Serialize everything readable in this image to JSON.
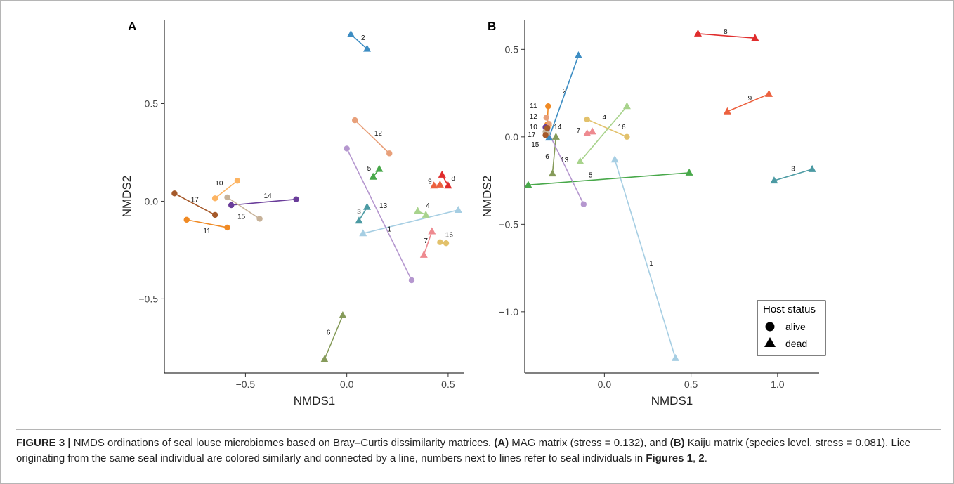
{
  "caption": {
    "lead": "FIGURE 3 |",
    "t1": " NMDS ordinations of seal louse microbiomes based on Bray–Curtis dissimilarity matrices. ",
    "a": "(A)",
    "t2": " MAG matrix (stress = 0.132), and ",
    "b": "(B)",
    "t3": " Kaiju matrix (species level, stress = 0.081). Lice originating from the same seal individual are colored similarly and connected by a line, numbers next to lines refer to seal individuals in ",
    "f1": "Figures 1",
    "sep": ", ",
    "f2": "2",
    "end": "."
  },
  "chart_data": [
    {
      "type": "scatter",
      "panel": "A",
      "title": "",
      "xlabel": "NMDS1",
      "ylabel": "NMDS2",
      "xlim": [
        -0.9,
        0.58
      ],
      "ylim": [
        -0.88,
        0.93
      ],
      "xticks": [
        -0.5,
        0.0,
        0.5
      ],
      "xticklabels": [
        "−0.5",
        "0.0",
        "0.5"
      ],
      "yticks": [
        -0.5,
        0.0,
        0.5
      ],
      "yticklabels": [
        "−0.5",
        "0.0",
        "0.5"
      ],
      "pairs": [
        {
          "id": "1",
          "color": "#a6cee3",
          "alive": null,
          "dead": [
            [
              0.08,
              -0.165
            ],
            [
              0.55,
              -0.045
            ]
          ],
          "label": [
            0.21,
            -0.14
          ]
        },
        {
          "id": "2",
          "color": "#3d8dc3",
          "alive": null,
          "dead": [
            [
              0.02,
              0.855
            ],
            [
              0.1,
              0.78
            ]
          ],
          "label": [
            0.08,
            0.84
          ]
        },
        {
          "id": "3",
          "color": "#4b9aa3",
          "alive": null,
          "dead": [
            [
              0.06,
              -0.1
            ],
            [
              0.1,
              -0.03
            ]
          ],
          "label": [
            0.06,
            -0.05
          ]
        },
        {
          "id": "4",
          "color": "#a8d38c",
          "alive": null,
          "dead": [
            [
              0.35,
              -0.05
            ],
            [
              0.39,
              -0.07
            ]
          ],
          "label": [
            0.4,
            -0.02
          ]
        },
        {
          "id": "5",
          "color": "#48a84a",
          "alive": null,
          "dead": [
            [
              0.13,
              0.125
            ],
            [
              0.16,
              0.165
            ]
          ],
          "label": [
            0.11,
            0.17
          ]
        },
        {
          "id": "6",
          "color": "#869b5a",
          "alive": null,
          "dead": [
            [
              -0.11,
              -0.81
            ],
            [
              -0.02,
              -0.585
            ]
          ],
          "label": [
            -0.09,
            -0.67
          ]
        },
        {
          "id": "7",
          "color": "#ee8a90",
          "alive": null,
          "dead": [
            [
              0.38,
              -0.275
            ],
            [
              0.42,
              -0.155
            ]
          ],
          "label": [
            0.39,
            -0.2
          ]
        },
        {
          "id": "8",
          "color": "#e02c2c",
          "alive": null,
          "dead": [
            [
              0.47,
              0.135
            ],
            [
              0.5,
              0.08
            ]
          ],
          "label": [
            0.525,
            0.12
          ]
        },
        {
          "id": "9",
          "color": "#ec613f",
          "alive": null,
          "dead": [
            [
              0.43,
              0.08
            ],
            [
              0.46,
              0.085
            ]
          ],
          "label": [
            0.41,
            0.105
          ]
        },
        {
          "id": "10",
          "color": "#fdb462",
          "alive": [
            [
              -0.65,
              0.015
            ],
            [
              -0.54,
              0.105
            ]
          ],
          "dead": null,
          "label": [
            -0.63,
            0.095
          ]
        },
        {
          "id": "11",
          "color": "#f08a24",
          "alive": [
            [
              -0.79,
              -0.095
            ],
            [
              -0.59,
              -0.135
            ]
          ],
          "dead": null,
          "label": [
            -0.69,
            -0.15
          ]
        },
        {
          "id": "12",
          "color": "#e8a07a",
          "alive": [
            [
              0.04,
              0.415
            ],
            [
              0.21,
              0.245
            ]
          ],
          "dead": null,
          "label": [
            0.155,
            0.35
          ]
        },
        {
          "id": "13",
          "color": "#b597cf",
          "alive": [
            [
              0.0,
              0.27
            ],
            [
              0.32,
              -0.405
            ]
          ],
          "dead": null,
          "label": [
            0.18,
            -0.02
          ]
        },
        {
          "id": "14",
          "color": "#6a3d9a",
          "alive": [
            [
              -0.57,
              -0.02
            ],
            [
              -0.25,
              0.01
            ]
          ],
          "dead": null,
          "label": [
            -0.39,
            0.03
          ]
        },
        {
          "id": "15",
          "color": "#c7b299",
          "alive": [
            [
              -0.59,
              0.02
            ],
            [
              -0.43,
              -0.09
            ]
          ],
          "dead": null,
          "label": [
            -0.52,
            -0.075
          ]
        },
        {
          "id": "16",
          "color": "#e2c16b",
          "alive": [
            [
              0.46,
              -0.21
            ],
            [
              0.49,
              -0.215
            ]
          ],
          "dead": null,
          "label": [
            0.505,
            -0.17
          ]
        },
        {
          "id": "17",
          "color": "#a5592a",
          "alive": [
            [
              -0.85,
              0.04
            ],
            [
              -0.65,
              -0.07
            ]
          ],
          "dead": null,
          "label": [
            -0.75,
            0.01
          ]
        }
      ]
    },
    {
      "type": "scatter",
      "panel": "B",
      "title": "",
      "xlabel": "NMDS1",
      "ylabel": "NMDS2",
      "xlim": [
        -0.46,
        1.24
      ],
      "ylim": [
        -1.35,
        0.67
      ],
      "xticks": [
        0.0,
        0.5,
        1.0
      ],
      "xticklabels": [
        "0.0",
        "0.5",
        "1.0"
      ],
      "yticks": [
        -1.0,
        -0.5,
        0.0,
        0.5
      ],
      "yticklabels": [
        "−1.0",
        "−0.5",
        "0.0",
        "0.5"
      ],
      "legend": {
        "title": "Host status",
        "items": [
          "alive",
          "dead"
        ],
        "position": "bottom-right"
      },
      "pairs": [
        {
          "id": "1",
          "color": "#a6cee3",
          "alive": null,
          "dead": [
            [
              0.06,
              -0.13
            ],
            [
              0.41,
              -1.265
            ]
          ],
          "label": [
            0.27,
            -0.72
          ]
        },
        {
          "id": "2",
          "color": "#3d8dc3",
          "alive": null,
          "dead": [
            [
              -0.32,
              -0.005
            ],
            [
              -0.15,
              0.465
            ]
          ],
          "label": [
            -0.23,
            0.265
          ]
        },
        {
          "id": "3",
          "color": "#4b9aa3",
          "alive": null,
          "dead": [
            [
              0.98,
              -0.25
            ],
            [
              1.2,
              -0.185
            ]
          ],
          "label": [
            1.09,
            -0.18
          ]
        },
        {
          "id": "4",
          "color": "#a8d38c",
          "alive": null,
          "dead": [
            [
              -0.14,
              -0.14
            ],
            [
              0.13,
              0.175
            ]
          ],
          "label": [
            0.0,
            0.115
          ]
        },
        {
          "id": "5",
          "color": "#48a84a",
          "alive": null,
          "dead": [
            [
              -0.44,
              -0.275
            ],
            [
              0.49,
              -0.205
            ]
          ],
          "label": [
            -0.08,
            -0.215
          ]
        },
        {
          "id": "6",
          "color": "#869b5a",
          "alive": null,
          "dead": [
            [
              -0.3,
              -0.21
            ],
            [
              -0.28,
              0.0
            ]
          ],
          "label": [
            -0.33,
            -0.11
          ]
        },
        {
          "id": "7",
          "color": "#ee8a90",
          "alive": null,
          "dead": [
            [
              -0.1,
              0.02
            ],
            [
              -0.07,
              0.03
            ]
          ],
          "label": [
            -0.15,
            0.04
          ]
        },
        {
          "id": "8",
          "color": "#e02c2c",
          "alive": null,
          "dead": [
            [
              0.54,
              0.59
            ],
            [
              0.87,
              0.565
            ]
          ],
          "label": [
            0.7,
            0.605
          ]
        },
        {
          "id": "9",
          "color": "#ec613f",
          "alive": null,
          "dead": [
            [
              0.71,
              0.145
            ],
            [
              0.95,
              0.245
            ]
          ],
          "label": [
            0.84,
            0.225
          ]
        },
        {
          "id": "10",
          "color": "#fdb462",
          "alive": [
            [
              -0.33,
              0.06
            ],
            [
              -0.32,
              0.065
            ]
          ],
          "dead": null,
          "label": [
            -0.41,
            0.06
          ]
        },
        {
          "id": "11",
          "color": "#f08a24",
          "alive": [
            [
              -0.325,
              0.175
            ],
            [
              -0.33,
              0.07
            ]
          ],
          "dead": null,
          "label": [
            -0.41,
            0.18
          ]
        },
        {
          "id": "12",
          "color": "#e8a07a",
          "alive": [
            [
              -0.335,
              0.11
            ],
            [
              -0.32,
              0.075
            ]
          ],
          "dead": null,
          "label": [
            -0.41,
            0.12
          ]
        },
        {
          "id": "13",
          "color": "#b597cf",
          "alive": [
            [
              -0.33,
              0.04
            ],
            [
              -0.12,
              -0.385
            ]
          ],
          "dead": null,
          "label": [
            -0.23,
            -0.13
          ]
        },
        {
          "id": "14",
          "color": "#6a3d9a",
          "alive": [
            [
              -0.33,
              0.05
            ],
            [
              -0.34,
              0.055
            ]
          ],
          "dead": null,
          "label": [
            -0.27,
            0.06
          ]
        },
        {
          "id": "15",
          "color": "#c7b299",
          "alive": [
            [
              -0.34,
              0.03
            ],
            [
              -0.33,
              0.02
            ]
          ],
          "dead": null,
          "label": [
            -0.4,
            -0.04
          ]
        },
        {
          "id": "16",
          "color": "#e2c16b",
          "alive": [
            [
              -0.1,
              0.1
            ],
            [
              0.13,
              0.0
            ]
          ],
          "dead": null,
          "label": [
            0.1,
            0.06
          ]
        },
        {
          "id": "17",
          "color": "#a5592a",
          "alive": [
            [
              -0.34,
              0.01
            ],
            [
              -0.33,
              0.05
            ]
          ],
          "dead": null,
          "label": [
            -0.42,
            0.015
          ]
        }
      ]
    }
  ]
}
